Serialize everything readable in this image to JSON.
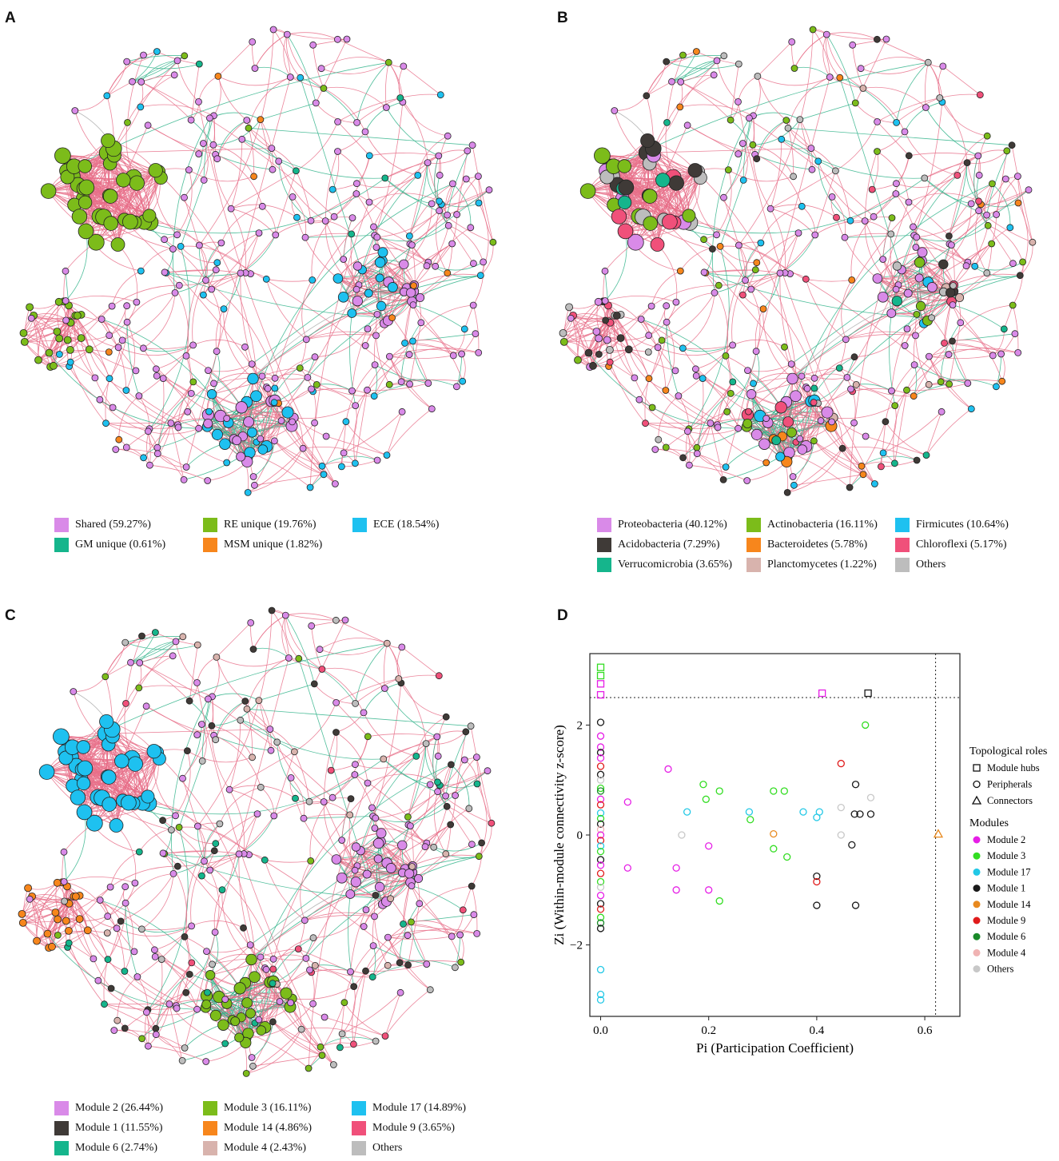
{
  "panels": {
    "A": {
      "letter": "A",
      "legend": [
        {
          "label": "Shared (59.27%)",
          "color": "#d98ae8"
        },
        {
          "label": "RE unique (19.76%)",
          "color": "#7cbc1a"
        },
        {
          "label": "ECE (18.54%)",
          "color": "#1ec1f0"
        },
        {
          "label": "GM unique (0.61%)",
          "color": "#15b58c"
        },
        {
          "label": "MSM unique (1.82%)",
          "color": "#f7861c"
        }
      ]
    },
    "B": {
      "letter": "B",
      "legend": [
        {
          "label": "Proteobacteria (40.12%)",
          "color": "#d98ae8"
        },
        {
          "label": "Actinobacteria (16.11%)",
          "color": "#7cbc1a"
        },
        {
          "label": "Firmicutes (10.64%)",
          "color": "#1ec1f0"
        },
        {
          "label": "Acidobacteria (7.29%)",
          "color": "#3f3a37"
        },
        {
          "label": "Bacteroidetes (5.78%)",
          "color": "#f7861c"
        },
        {
          "label": "Chloroflexi (5.17%)",
          "color": "#f0507a"
        },
        {
          "label": "Verrucomicrobia (3.65%)",
          "color": "#15b58c"
        },
        {
          "label": "Planctomycetes (1.22%)",
          "color": "#d8b3ad"
        },
        {
          "label": "Others",
          "color": "#bdbdbd"
        }
      ]
    },
    "C": {
      "letter": "C",
      "legend": [
        {
          "label": "Module 2 (26.44%)",
          "color": "#d98ae8"
        },
        {
          "label": "Module 3 (16.11%)",
          "color": "#7cbc1a"
        },
        {
          "label": "Module 17 (14.89%)",
          "color": "#1ec1f0"
        },
        {
          "label": "Module 1 (11.55%)",
          "color": "#3f3a37"
        },
        {
          "label": "Module 14 (4.86%)",
          "color": "#f7861c"
        },
        {
          "label": "Module 9 (3.65%)",
          "color": "#f0507a"
        },
        {
          "label": "Module 6 (2.74%)",
          "color": "#15b58c"
        },
        {
          "label": "Module 4 (2.43%)",
          "color": "#d8b3ad"
        },
        {
          "label": "Others",
          "color": "#bdbdbd"
        }
      ]
    },
    "D": {
      "letter": "D"
    }
  },
  "colors": {
    "edge_pos": "#e8708a",
    "edge_neg": "#30b38a",
    "edge_other": "#aaaaaa",
    "node_stroke": "#222222"
  },
  "chart_data": {
    "type": "scatter",
    "xlabel": "Pi (Participation Coefficient)",
    "ylabel": "Zi (Within-module connectivity z-score)",
    "xlim": [
      -0.02,
      0.665
    ],
    "ylim": [
      -3.3,
      3.3
    ],
    "xticks": [
      0.0,
      0.2,
      0.4,
      0.6
    ],
    "yticks": [
      -2,
      0,
      2
    ],
    "xtick_labels": [
      "0.0",
      "0.2",
      "0.4",
      "0.6"
    ],
    "ytick_labels": [
      "−2",
      "0",
      "2"
    ],
    "thresholds": {
      "zi": 2.5,
      "pi": 0.62
    },
    "legend_title_roles": "Topological roles",
    "roles": [
      {
        "label": "Module hubs",
        "shape": "square"
      },
      {
        "label": "Peripherals",
        "shape": "circle"
      },
      {
        "label": "Connectors",
        "shape": "triangle"
      }
    ],
    "legend_title_modules": "Modules",
    "modules": [
      {
        "label": "Module 2",
        "color": "#e61ee6"
      },
      {
        "label": "Module 3",
        "color": "#33dd22"
      },
      {
        "label": "Module 17",
        "color": "#22c8e6"
      },
      {
        "label": "Module 1",
        "color": "#1a1a1a"
      },
      {
        "label": "Module 14",
        "color": "#e8891e"
      },
      {
        "label": "Module 9",
        "color": "#e01b1b"
      },
      {
        "label": "Module 6",
        "color": "#1a8a2a"
      },
      {
        "label": "Module 4",
        "color": "#f0b3b3"
      },
      {
        "label": "Others",
        "color": "#c8c8c8"
      }
    ],
    "points": [
      {
        "x": 0.0,
        "y": 3.05,
        "m": 1,
        "s": "square"
      },
      {
        "x": 0.0,
        "y": 2.9,
        "m": 1,
        "s": "square"
      },
      {
        "x": 0.0,
        "y": 2.75,
        "m": 0,
        "s": "square"
      },
      {
        "x": 0.0,
        "y": 2.55,
        "m": 0,
        "s": "square"
      },
      {
        "x": 0.41,
        "y": 2.58,
        "m": 0,
        "s": "square"
      },
      {
        "x": 0.495,
        "y": 2.58,
        "m": 3,
        "s": "square"
      },
      {
        "x": 0.625,
        "y": 0.02,
        "m": 4,
        "s": "triangle"
      },
      {
        "x": 0.0,
        "y": 2.05,
        "m": 3,
        "s": "circle"
      },
      {
        "x": 0.0,
        "y": 1.8,
        "m": 0,
        "s": "circle"
      },
      {
        "x": 0.0,
        "y": 1.6,
        "m": 0,
        "s": "circle"
      },
      {
        "x": 0.0,
        "y": 1.5,
        "m": 3,
        "s": "circle"
      },
      {
        "x": 0.0,
        "y": 1.4,
        "m": 0,
        "s": "circle"
      },
      {
        "x": 0.0,
        "y": 1.25,
        "m": 5,
        "s": "circle"
      },
      {
        "x": 0.0,
        "y": 1.1,
        "m": 3,
        "s": "circle"
      },
      {
        "x": 0.0,
        "y": 1.0,
        "m": 8,
        "s": "circle"
      },
      {
        "x": 0.0,
        "y": 0.85,
        "m": 1,
        "s": "circle"
      },
      {
        "x": 0.0,
        "y": 0.8,
        "m": 6,
        "s": "circle"
      },
      {
        "x": 0.0,
        "y": 0.65,
        "m": 0,
        "s": "circle"
      },
      {
        "x": 0.0,
        "y": 0.55,
        "m": 5,
        "s": "circle"
      },
      {
        "x": 0.0,
        "y": 0.4,
        "m": 2,
        "s": "circle"
      },
      {
        "x": 0.0,
        "y": 0.3,
        "m": 1,
        "s": "circle"
      },
      {
        "x": 0.0,
        "y": 0.2,
        "m": 3,
        "s": "circle"
      },
      {
        "x": 0.0,
        "y": 0.1,
        "m": 7,
        "s": "circle"
      },
      {
        "x": 0.0,
        "y": 0.0,
        "m": 0,
        "s": "circle"
      },
      {
        "x": 0.0,
        "y": -0.1,
        "m": 5,
        "s": "circle"
      },
      {
        "x": 0.0,
        "y": -0.2,
        "m": 2,
        "s": "circle"
      },
      {
        "x": 0.0,
        "y": -0.3,
        "m": 1,
        "s": "circle"
      },
      {
        "x": 0.0,
        "y": -0.45,
        "m": 3,
        "s": "circle"
      },
      {
        "x": 0.0,
        "y": -0.55,
        "m": 0,
        "s": "circle"
      },
      {
        "x": 0.0,
        "y": -0.7,
        "m": 5,
        "s": "circle"
      },
      {
        "x": 0.0,
        "y": -0.85,
        "m": 1,
        "s": "circle"
      },
      {
        "x": 0.0,
        "y": -0.95,
        "m": 8,
        "s": "circle"
      },
      {
        "x": 0.0,
        "y": -1.1,
        "m": 0,
        "s": "circle"
      },
      {
        "x": 0.0,
        "y": -1.25,
        "m": 3,
        "s": "circle"
      },
      {
        "x": 0.0,
        "y": -1.35,
        "m": 5,
        "s": "circle"
      },
      {
        "x": 0.0,
        "y": -1.5,
        "m": 1,
        "s": "circle"
      },
      {
        "x": 0.0,
        "y": -1.6,
        "m": 6,
        "s": "circle"
      },
      {
        "x": 0.0,
        "y": -1.7,
        "m": 3,
        "s": "circle"
      },
      {
        "x": 0.0,
        "y": -2.45,
        "m": 2,
        "s": "circle"
      },
      {
        "x": 0.0,
        "y": -2.9,
        "m": 2,
        "s": "circle"
      },
      {
        "x": 0.0,
        "y": -3.0,
        "m": 2,
        "s": "circle"
      },
      {
        "x": 0.05,
        "y": 0.6,
        "m": 0,
        "s": "circle"
      },
      {
        "x": 0.05,
        "y": -0.6,
        "m": 0,
        "s": "circle"
      },
      {
        "x": 0.125,
        "y": 1.2,
        "m": 0,
        "s": "circle"
      },
      {
        "x": 0.14,
        "y": -0.6,
        "m": 0,
        "s": "circle"
      },
      {
        "x": 0.14,
        "y": -1.0,
        "m": 0,
        "s": "circle"
      },
      {
        "x": 0.15,
        "y": 0.0,
        "m": 8,
        "s": "circle"
      },
      {
        "x": 0.16,
        "y": 0.42,
        "m": 2,
        "s": "circle"
      },
      {
        "x": 0.19,
        "y": 0.92,
        "m": 1,
        "s": "circle"
      },
      {
        "x": 0.195,
        "y": 0.65,
        "m": 1,
        "s": "circle"
      },
      {
        "x": 0.2,
        "y": -0.2,
        "m": 0,
        "s": "circle"
      },
      {
        "x": 0.2,
        "y": -1.0,
        "m": 0,
        "s": "circle"
      },
      {
        "x": 0.22,
        "y": 0.8,
        "m": 1,
        "s": "circle"
      },
      {
        "x": 0.22,
        "y": -1.2,
        "m": 1,
        "s": "circle"
      },
      {
        "x": 0.275,
        "y": 0.42,
        "m": 2,
        "s": "circle"
      },
      {
        "x": 0.277,
        "y": 0.28,
        "m": 1,
        "s": "circle"
      },
      {
        "x": 0.32,
        "y": 0.8,
        "m": 1,
        "s": "circle"
      },
      {
        "x": 0.32,
        "y": 0.02,
        "m": 4,
        "s": "circle"
      },
      {
        "x": 0.32,
        "y": -0.25,
        "m": 1,
        "s": "circle"
      },
      {
        "x": 0.34,
        "y": 0.8,
        "m": 1,
        "s": "circle"
      },
      {
        "x": 0.345,
        "y": -0.4,
        "m": 1,
        "s": "circle"
      },
      {
        "x": 0.375,
        "y": 0.42,
        "m": 2,
        "s": "circle"
      },
      {
        "x": 0.4,
        "y": 0.32,
        "m": 2,
        "s": "circle"
      },
      {
        "x": 0.405,
        "y": 0.42,
        "m": 2,
        "s": "circle"
      },
      {
        "x": 0.4,
        "y": -0.75,
        "m": 3,
        "s": "circle"
      },
      {
        "x": 0.4,
        "y": -0.85,
        "m": 5,
        "s": "circle"
      },
      {
        "x": 0.4,
        "y": -1.28,
        "m": 3,
        "s": "circle"
      },
      {
        "x": 0.445,
        "y": 1.3,
        "m": 5,
        "s": "circle"
      },
      {
        "x": 0.445,
        "y": 0.5,
        "m": 8,
        "s": "circle"
      },
      {
        "x": 0.445,
        "y": 0.0,
        "m": 8,
        "s": "circle"
      },
      {
        "x": 0.465,
        "y": -0.18,
        "m": 3,
        "s": "circle"
      },
      {
        "x": 0.472,
        "y": 0.92,
        "m": 3,
        "s": "circle"
      },
      {
        "x": 0.47,
        "y": 0.38,
        "m": 3,
        "s": "circle"
      },
      {
        "x": 0.48,
        "y": 0.38,
        "m": 3,
        "s": "circle"
      },
      {
        "x": 0.472,
        "y": -1.28,
        "m": 3,
        "s": "circle"
      },
      {
        "x": 0.49,
        "y": 2.0,
        "m": 1,
        "s": "circle"
      },
      {
        "x": 0.5,
        "y": 0.68,
        "m": 8,
        "s": "circle"
      },
      {
        "x": 0.5,
        "y": 0.38,
        "m": 3,
        "s": "circle"
      }
    ]
  }
}
